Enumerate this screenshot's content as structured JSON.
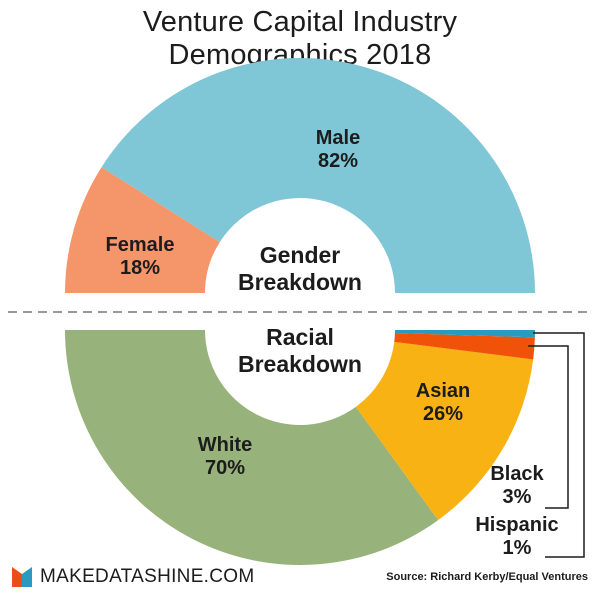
{
  "title_line1": "Venture Capital Industry",
  "title_line2": "Demographics 2018",
  "brand": "MAKEDATASHINE.COM",
  "source": "Source: Richard Kerby/Equal Ventures",
  "colors": {
    "male": "#7fc6d6",
    "female": "#f4956a",
    "white": "#97b27a",
    "asian": "#f9b214",
    "black": "#f1520a",
    "hispanic": "#2a9bbe",
    "logo_red": "#e84e1b",
    "logo_blue": "#2a9bbe"
  },
  "chart_data": [
    {
      "type": "pie",
      "subtype": "half-donut",
      "center_label": [
        "Gender",
        "Breakdown"
      ],
      "slices": [
        {
          "label": "Female",
          "value": 18,
          "display": "18%"
        },
        {
          "label": "Male",
          "value": 82,
          "display": "82%"
        }
      ]
    },
    {
      "type": "pie",
      "subtype": "half-donut",
      "center_label": [
        "Racial",
        "Breakdown"
      ],
      "slices": [
        {
          "label": "White",
          "value": 70,
          "display": "70%"
        },
        {
          "label": "Asian",
          "value": 26,
          "display": "26%"
        },
        {
          "label": "Black",
          "value": 3,
          "display": "3%"
        },
        {
          "label": "Hispanic",
          "value": 1,
          "display": "1%"
        }
      ]
    }
  ]
}
